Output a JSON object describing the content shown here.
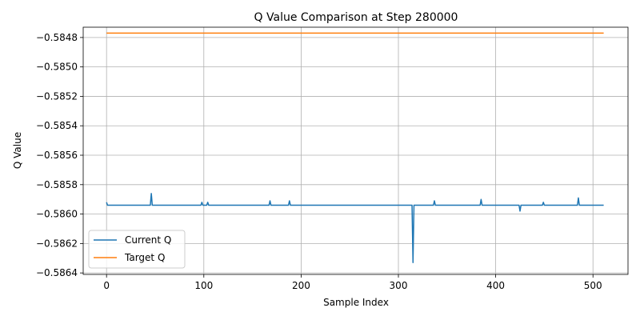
{
  "chart_data": {
    "type": "line",
    "title": "Q Value Comparison at Step 280000",
    "xlabel": "Sample Index",
    "ylabel": "Q Value",
    "xlim": [
      -24,
      536
    ],
    "ylim": [
      -0.58641,
      -0.58473
    ],
    "xticks": [
      0,
      100,
      200,
      300,
      400,
      500
    ],
    "yticks": [
      -0.5848,
      -0.585,
      -0.5852,
      -0.5854,
      -0.5856,
      -0.5858,
      -0.586,
      -0.5862,
      -0.5864
    ],
    "ytick_labels": [
      "−0.5848",
      "−0.5850",
      "−0.5852",
      "−0.5854",
      "−0.5856",
      "−0.5858",
      "−0.5860",
      "−0.5862",
      "−0.5864"
    ],
    "grid": true,
    "legend_position": "lower-left",
    "series": [
      {
        "name": "Current Q",
        "color": "#1f77b4",
        "points": [
          [
            0,
            -0.58592
          ],
          [
            1,
            -0.58594
          ],
          [
            2,
            -0.58594
          ],
          [
            45,
            -0.58594
          ],
          [
            46,
            -0.58586
          ],
          [
            47,
            -0.58594
          ],
          [
            97,
            -0.58594
          ],
          [
            98,
            -0.58592
          ],
          [
            99,
            -0.58594
          ],
          [
            103,
            -0.58594
          ],
          [
            104,
            -0.58592
          ],
          [
            105,
            -0.58594
          ],
          [
            167,
            -0.58594
          ],
          [
            168,
            -0.58591
          ],
          [
            169,
            -0.58594
          ],
          [
            187,
            -0.58594
          ],
          [
            188,
            -0.58591
          ],
          [
            189,
            -0.58594
          ],
          [
            314,
            -0.58594
          ],
          [
            315,
            -0.58633
          ],
          [
            316,
            -0.58594
          ],
          [
            336,
            -0.58594
          ],
          [
            337,
            -0.58591
          ],
          [
            338,
            -0.58594
          ],
          [
            384,
            -0.58594
          ],
          [
            385,
            -0.5859
          ],
          [
            386,
            -0.58594
          ],
          [
            424,
            -0.58594
          ],
          [
            425,
            -0.58598
          ],
          [
            426,
            -0.58594
          ],
          [
            448,
            -0.58594
          ],
          [
            449,
            -0.58592
          ],
          [
            450,
            -0.58594
          ],
          [
            484,
            -0.58594
          ],
          [
            485,
            -0.58589
          ],
          [
            486,
            -0.58594
          ],
          [
            511,
            -0.58594
          ]
        ]
      },
      {
        "name": "Target Q",
        "color": "#ff7f0e",
        "points": [
          [
            0,
            -0.58477
          ],
          [
            511,
            -0.58477
          ]
        ]
      }
    ]
  }
}
